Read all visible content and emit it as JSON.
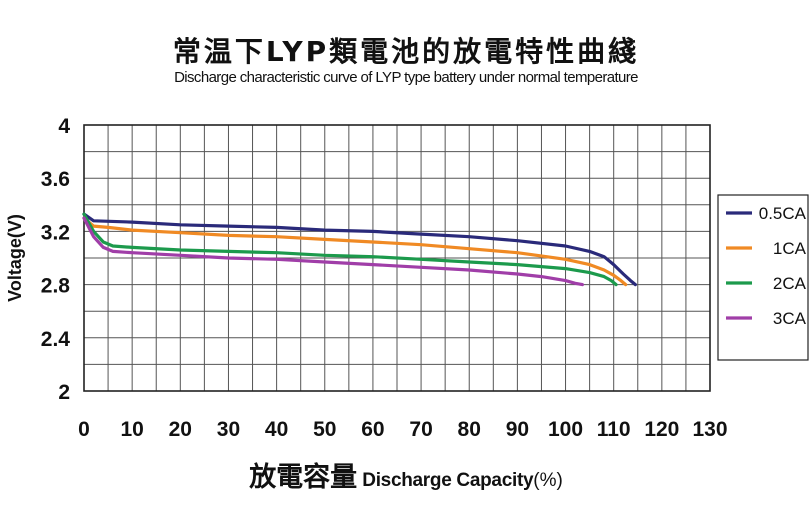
{
  "chart_data": {
    "type": "line",
    "title": "常温下LYP類電池的放電特性曲綫",
    "subtitle": "Discharge characteristic curve of LYP type battery under normal temperature",
    "xlabel_cn": "放電容量",
    "xlabel": "Discharge Capacity",
    "xlabel_unit": "(%)",
    "ylabel": "Voltage(V)",
    "xlim": [
      0,
      130
    ],
    "ylim": [
      2,
      4
    ],
    "x_ticks": [
      "0",
      "10",
      "20",
      "30",
      "40",
      "50",
      "60",
      "70",
      "80",
      "90",
      "100",
      "110",
      "120",
      "130"
    ],
    "y_ticks": [
      "2",
      "2.4",
      "2.8",
      "3.2",
      "3.6",
      "4"
    ],
    "grid": true,
    "legend_position": "right",
    "series": [
      {
        "name": "0.5CA",
        "color": "#2a2a7a",
        "x": [
          0,
          2,
          10,
          20,
          30,
          40,
          50,
          60,
          70,
          80,
          90,
          100,
          105,
          108,
          110,
          112,
          113.5,
          114.5
        ],
        "y": [
          3.33,
          3.28,
          3.27,
          3.25,
          3.24,
          3.23,
          3.21,
          3.2,
          3.18,
          3.16,
          3.13,
          3.09,
          3.05,
          3.01,
          2.95,
          2.88,
          2.83,
          2.8
        ]
      },
      {
        "name": "1CA",
        "color": "#f08a24",
        "x": [
          0,
          2,
          5,
          10,
          20,
          30,
          40,
          50,
          60,
          70,
          80,
          90,
          100,
          105,
          108,
          110,
          111.5,
          112.5
        ],
        "y": [
          3.3,
          3.24,
          3.23,
          3.21,
          3.19,
          3.17,
          3.16,
          3.14,
          3.12,
          3.1,
          3.07,
          3.04,
          2.99,
          2.95,
          2.91,
          2.87,
          2.83,
          2.8
        ]
      },
      {
        "name": "2CA",
        "color": "#1c9a4c",
        "x": [
          0,
          2,
          4,
          6,
          10,
          20,
          30,
          40,
          50,
          60,
          70,
          80,
          90,
          100,
          105,
          108,
          109.5,
          110.5
        ],
        "y": [
          3.33,
          3.2,
          3.12,
          3.09,
          3.08,
          3.06,
          3.05,
          3.04,
          3.02,
          3.01,
          2.99,
          2.97,
          2.95,
          2.92,
          2.89,
          2.86,
          2.83,
          2.8
        ]
      },
      {
        "name": "3CA",
        "color": "#a03ea8",
        "x": [
          0,
          2,
          4,
          6,
          10,
          20,
          30,
          40,
          50,
          60,
          70,
          80,
          90,
          95,
          100,
          102,
          103.5
        ],
        "y": [
          3.3,
          3.16,
          3.08,
          3.05,
          3.04,
          3.02,
          3.0,
          2.99,
          2.97,
          2.95,
          2.93,
          2.91,
          2.88,
          2.86,
          2.83,
          2.81,
          2.8
        ]
      }
    ]
  }
}
